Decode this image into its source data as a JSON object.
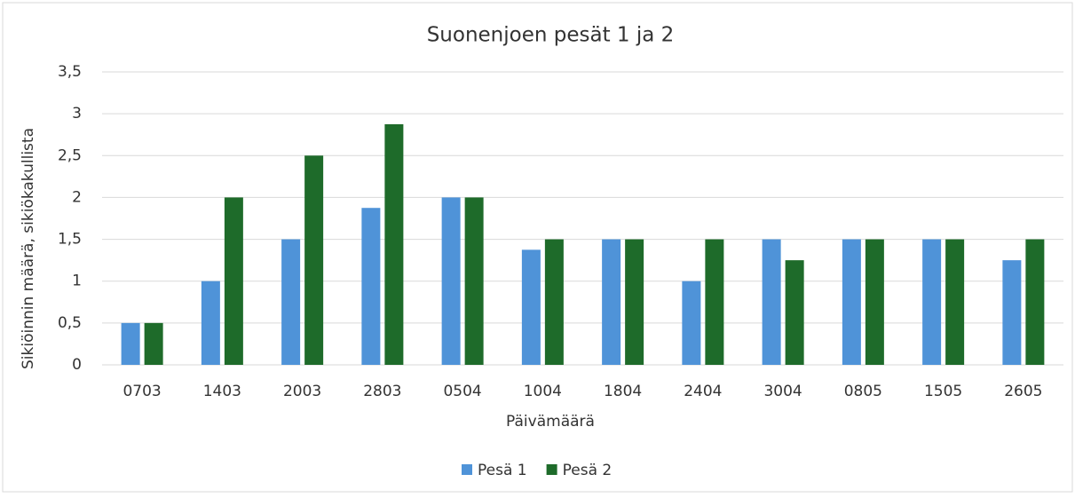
{
  "chart_data": {
    "type": "bar",
    "title": "Suonenjoen pesät 1 ja 2",
    "x_label": "Päivämäärä",
    "y_label": "Sikiöinnin määrä, sikiökakullista",
    "categories": [
      "0703",
      "1403",
      "2003",
      "2803",
      "0504",
      "1004",
      "1804",
      "2404",
      "3004",
      "0805",
      "1505",
      "2605"
    ],
    "series": [
      {
        "name": "Pesä 1",
        "color": "#4f93d8",
        "values": [
          0.5,
          1,
          1.5,
          1.875,
          2,
          1.375,
          1.5,
          1,
          1.5,
          1.5,
          1.5,
          1.25
        ]
      },
      {
        "name": "Pesä 2",
        "color": "#1e6b2a",
        "values": [
          0.5,
          2,
          2.5,
          2.875,
          2,
          1.5,
          1.5,
          1.5,
          1.25,
          1.5,
          1.5,
          1.5
        ]
      }
    ],
    "ylim": [
      0,
      3.5
    ],
    "yticks": [
      0,
      {
        "value": 0.5,
        "label": "0,5"
      },
      1,
      {
        "value": 1.5,
        "label": "1,5"
      },
      2,
      {
        "value": 2.5,
        "label": "2,5"
      },
      3,
      {
        "value": 3.5,
        "label": "3,5"
      }
    ],
    "grid": true,
    "legend": "bottom"
  }
}
